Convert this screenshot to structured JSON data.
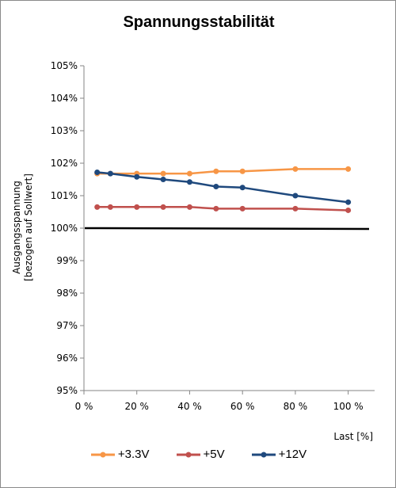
{
  "chart_data": {
    "type": "line",
    "title": "Spannungsstabilität",
    "ylabel_lines": [
      "Ausgangsspannung",
      "[bezogen auf Sollwert]"
    ],
    "xlabel": "Last [%]",
    "xlim": [
      0,
      110
    ],
    "ylim": [
      95,
      105
    ],
    "x_ticks": [
      0,
      20,
      40,
      60,
      80,
      100
    ],
    "x_tick_labels": [
      "0 %",
      "20 %",
      "40 %",
      "60 %",
      "80 %",
      "100 %"
    ],
    "y_ticks": [
      95,
      96,
      97,
      98,
      99,
      100,
      101,
      102,
      103,
      104,
      105
    ],
    "y_tick_labels": [
      "95%",
      "96%",
      "97%",
      "98%",
      "99%",
      "100%",
      "101%",
      "102%",
      "103%",
      "104%",
      "105%"
    ],
    "grid": false,
    "legend_position": "bottom",
    "reference_line": {
      "y": 100,
      "color": "#000000"
    },
    "series": [
      {
        "name": "+3.3V",
        "color": "#f79646",
        "x": [
          5,
          10,
          20,
          30,
          40,
          50,
          60,
          80,
          100
        ],
        "values": [
          101.68,
          101.68,
          101.68,
          101.68,
          101.68,
          101.75,
          101.75,
          101.82,
          101.82
        ]
      },
      {
        "name": "+5V",
        "color": "#c0504d",
        "x": [
          5,
          10,
          20,
          30,
          40,
          50,
          60,
          80,
          100
        ],
        "values": [
          100.65,
          100.65,
          100.65,
          100.65,
          100.65,
          100.6,
          100.6,
          100.6,
          100.55
        ]
      },
      {
        "name": "+12V",
        "color": "#1f497d",
        "x": [
          5,
          10,
          20,
          30,
          40,
          50,
          60,
          80,
          100
        ],
        "values": [
          101.72,
          101.68,
          101.58,
          101.5,
          101.42,
          101.28,
          101.25,
          101.0,
          100.8
        ]
      }
    ]
  }
}
